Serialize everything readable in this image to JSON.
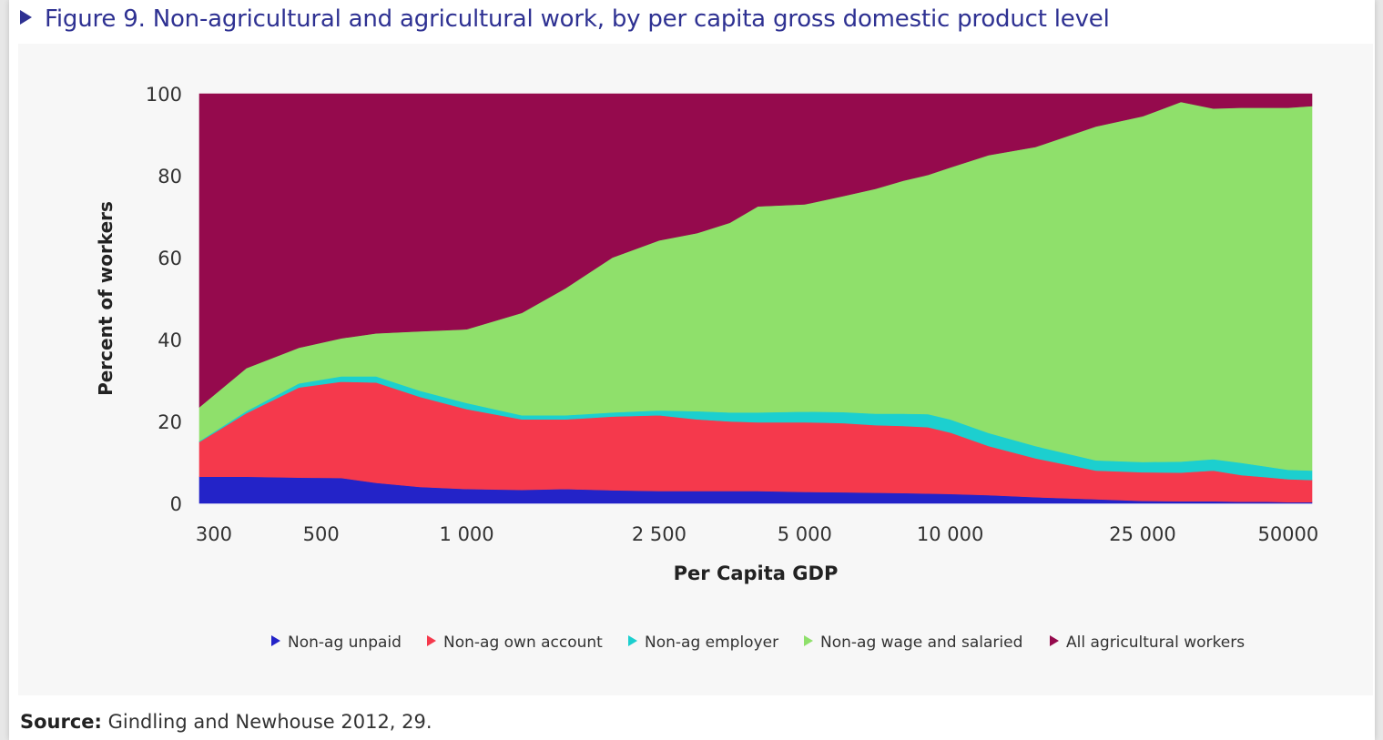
{
  "figure": {
    "title": "Figure 9. Non-agricultural and agricultural work, by per capita gross domestic product level"
  },
  "source": {
    "label": "Source:",
    "text": "Gindling and Newhouse 2012, 29."
  },
  "colors": {
    "title": "#2e3192",
    "unpaid": "#2323c8",
    "own_account": "#f5394c",
    "employer": "#1ccfcf",
    "wage": "#8fe06b",
    "agricultural": "#950a4d"
  },
  "chart_data": {
    "type": "area",
    "stacked": true,
    "x_scale": "log",
    "xlabel": "Per Capita GDP",
    "ylabel": "Percent of workers",
    "xlim": [
      280,
      56000
    ],
    "ylim": [
      0,
      100
    ],
    "x_ticks": [
      300,
      500,
      1000,
      2500,
      5000,
      10000,
      25000,
      50000
    ],
    "x_tick_labels": [
      "300",
      "500",
      "1 000",
      "2 500",
      "5 000",
      "10 000",
      "25 000",
      "50000"
    ],
    "y_ticks": [
      0,
      20,
      40,
      60,
      80,
      100
    ],
    "y_tick_labels": [
      "0",
      "20",
      "40",
      "60",
      "80",
      "100"
    ],
    "legend_position": "bottom",
    "x": [
      280,
      350,
      450,
      550,
      650,
      800,
      1000,
      1300,
      1600,
      2000,
      2500,
      3000,
      3500,
      4000,
      5000,
      6000,
      7000,
      8000,
      9000,
      10000,
      12000,
      15000,
      20000,
      25000,
      30000,
      35000,
      40000,
      45000,
      50000,
      56000
    ],
    "series": [
      {
        "name": "Non-ag unpaid",
        "color": "#2323c8",
        "values": [
          6.5,
          6.5,
          6.3,
          6.2,
          5,
          4,
          3.5,
          3.3,
          3.5,
          3.2,
          3,
          3,
          3,
          3,
          2.8,
          2.7,
          2.6,
          2.5,
          2.4,
          2.3,
          2,
          1.5,
          1,
          0.6,
          0.5,
          0.5,
          0.4,
          0.4,
          0.3,
          0.3
        ]
      },
      {
        "name": "Non-ag own account",
        "color": "#f5394c",
        "values": [
          8.5,
          15.5,
          22,
          23.5,
          24.5,
          22,
          19.5,
          17.2,
          17,
          18,
          18.5,
          17.5,
          17,
          16.8,
          17,
          16.9,
          16.5,
          16.4,
          16.2,
          15,
          12,
          9.5,
          7,
          7,
          7,
          7.5,
          6.5,
          6,
          5.6,
          5.4
        ]
      },
      {
        "name": "Non-ag employer",
        "color": "#1ccfcf",
        "values": [
          0.2,
          0.5,
          1,
          1.3,
          1.5,
          1.5,
          1.5,
          1,
          1,
          1,
          1.2,
          2,
          2.2,
          2.4,
          2.6,
          2.7,
          2.8,
          3,
          3.2,
          3.2,
          3.2,
          3,
          2.5,
          2.5,
          2.7,
          2.8,
          3,
          2.6,
          2.3,
          2.3
        ]
      },
      {
        "name": "Non-ag wage and salaried",
        "color": "#8fe06b",
        "values": [
          8.3,
          10.5,
          8.7,
          9.3,
          10.5,
          14.5,
          18,
          25,
          31,
          37.8,
          41.5,
          43.5,
          46.3,
          50.3,
          50.6,
          52.7,
          54.9,
          56.9,
          58.4,
          61.5,
          67.8,
          73,
          81.5,
          84.4,
          87.8,
          85.6,
          86.7,
          87.6,
          88.4,
          89
        ]
      },
      {
        "name": "All agricultural workers",
        "color": "#950a4d",
        "values": [
          76.5,
          67,
          62,
          59.7,
          58.5,
          58,
          57.5,
          53.5,
          47.5,
          40,
          35.8,
          34,
          31.5,
          27.5,
          27,
          25,
          23.2,
          21.2,
          19.8,
          18,
          15,
          13,
          8,
          5.5,
          2,
          3.6,
          3.4,
          3.4,
          3.4,
          3
        ]
      }
    ]
  }
}
